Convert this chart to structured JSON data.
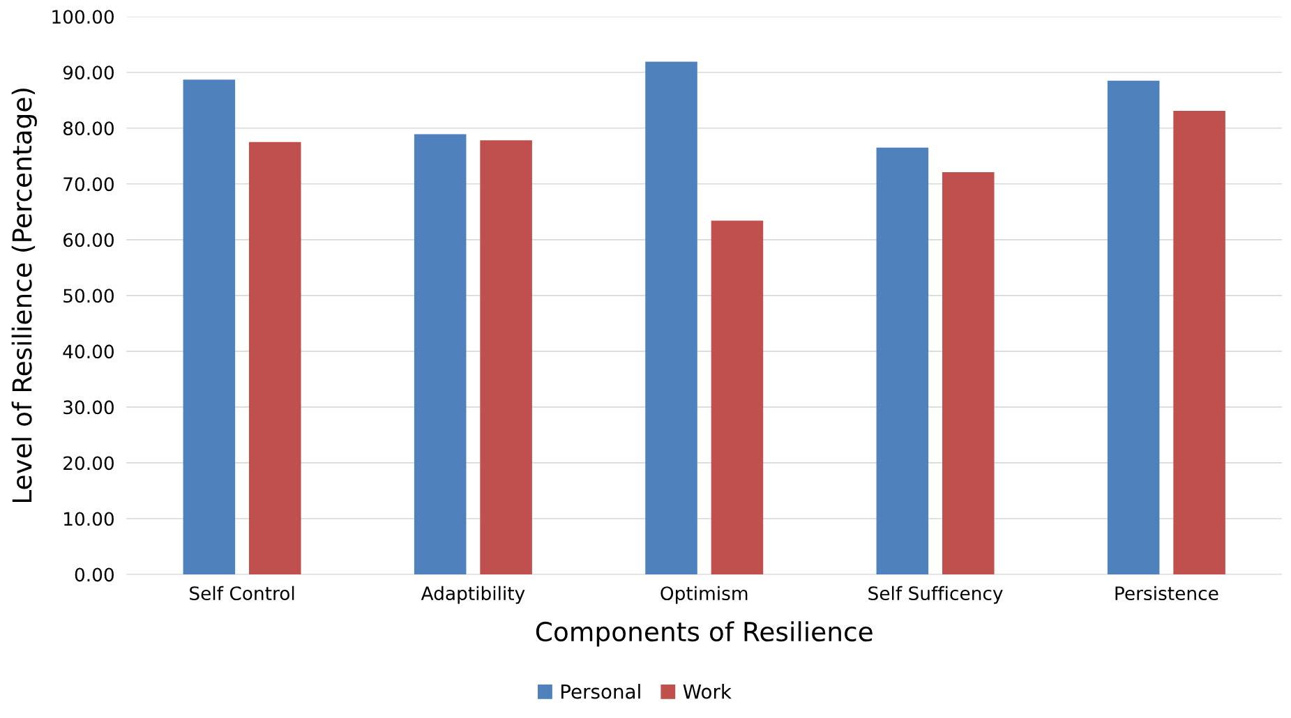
{
  "chart_data": {
    "type": "bar",
    "xlabel": "Components of Resilience",
    "ylabel": "Level of Resilience (Percentage)",
    "categories": [
      "Self Control",
      "Adaptibility",
      "Optimism",
      "Self Sufficency",
      "Persistence"
    ],
    "series": [
      {
        "name": "Personal",
        "color": "#4f81bd",
        "values": [
          88.7,
          78.9,
          91.9,
          76.5,
          88.5
        ]
      },
      {
        "name": "Work",
        "color": "#c0504d",
        "values": [
          77.5,
          77.8,
          63.4,
          72.1,
          83.1
        ]
      }
    ],
    "ylim": [
      0,
      100
    ],
    "yticks": [
      {
        "value": 0,
        "label": "0.00"
      },
      {
        "value": 10,
        "label": "10.00"
      },
      {
        "value": 20,
        "label": "20.00"
      },
      {
        "value": 30,
        "label": "30.00"
      },
      {
        "value": 40,
        "label": "40.00"
      },
      {
        "value": 50,
        "label": "50.00"
      },
      {
        "value": 60,
        "label": "60.00"
      },
      {
        "value": 70,
        "label": "70.00"
      },
      {
        "value": 80,
        "label": "80.00"
      },
      {
        "value": 90,
        "label": "90.00"
      },
      {
        "value": 100,
        "label": "100.00"
      }
    ],
    "grid": "y",
    "legend": "bottom"
  }
}
